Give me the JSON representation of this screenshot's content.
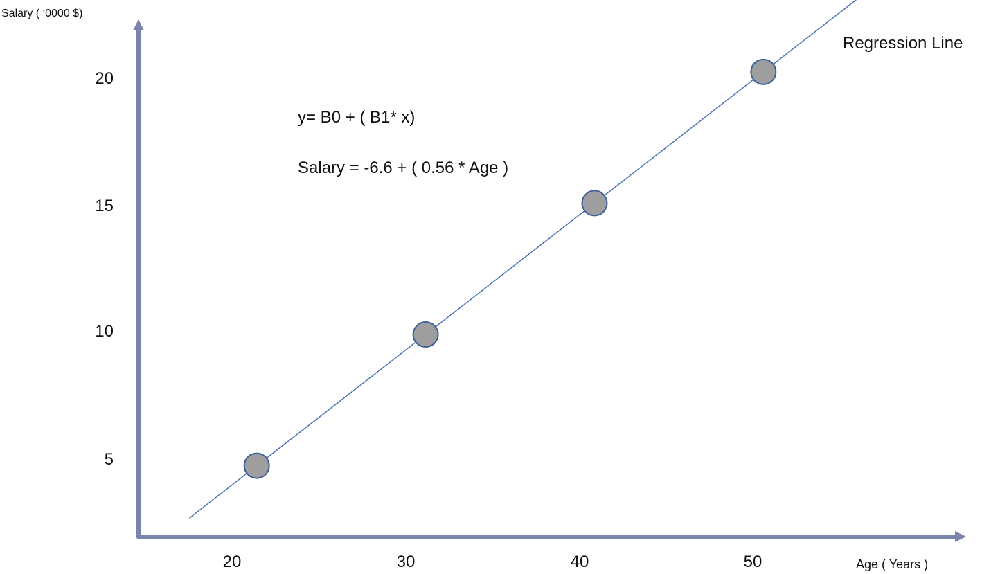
{
  "chart_data": {
    "type": "scatter",
    "ylabel": "Salary ( ‘0000  $)",
    "xlabel": "Age ( Years )",
    "x_ticks": [
      "20",
      "30",
      "40",
      "50"
    ],
    "y_ticks": [
      "5",
      "10",
      "15",
      "20"
    ],
    "points": [
      {
        "x": 20,
        "y": 5
      },
      {
        "x": 30,
        "y": 10
      },
      {
        "x": 40,
        "y": 15
      },
      {
        "x": 50,
        "y": 20
      }
    ],
    "regression_line": {
      "label": "Regression Line",
      "intercept": -6.6,
      "slope": 0.56
    },
    "annotations": [
      "y= B0 + ( B1* x)",
      "Salary = -6.6 + ( 0.56 * Age )"
    ],
    "xlim": [
      13,
      62
    ],
    "ylim": [
      2.3,
      22
    ],
    "grid": false,
    "colors": {
      "axis": "#7a84ad",
      "line": "#4a72b8",
      "point_fill": "#9e9e9e",
      "point_stroke": "#3c5f9c"
    }
  }
}
